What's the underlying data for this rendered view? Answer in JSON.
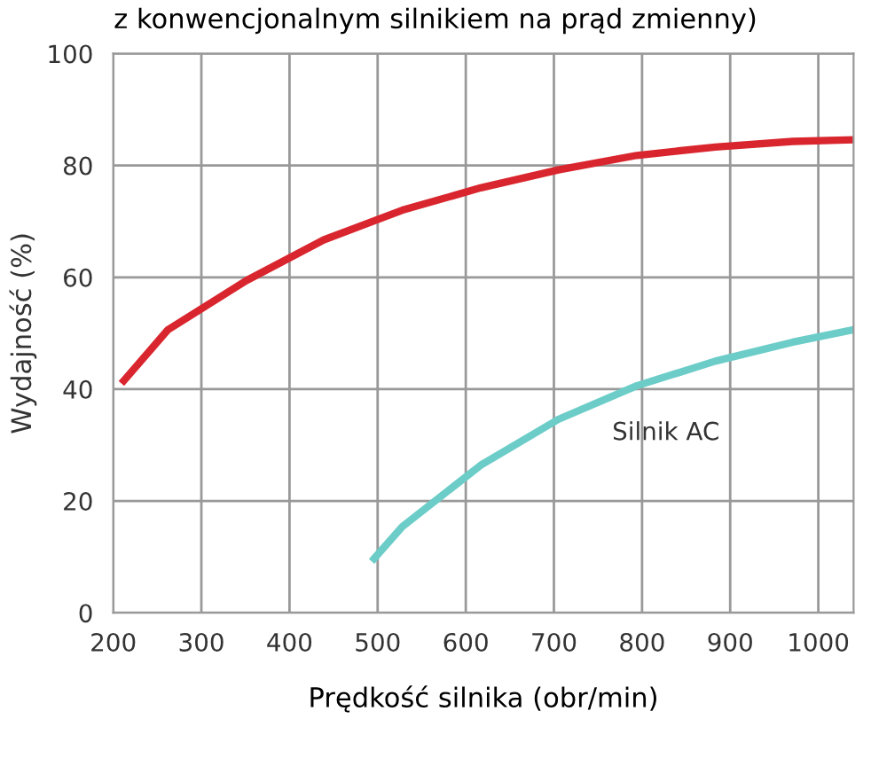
{
  "chart_data": {
    "type": "line",
    "title": "z konwencjonalnym silnikiem na prąd zmienny)",
    "xlabel": "Prędkość silnika (obr/min)",
    "ylabel": "Wydajność (%)",
    "series": [
      {
        "color": "#d9262e",
        "x": [
          212,
          262,
          351,
          439,
          528,
          617,
          705,
          794,
          883,
          971,
          1039
        ],
        "values": [
          41.5,
          50.6,
          59.4,
          66.7,
          72,
          76,
          79.2,
          81.8,
          83.3,
          84.3,
          84.6
        ]
      },
      {
        "name": "Silnik AC",
        "color": "#6ccdc8",
        "x": [
          496,
          528,
          617,
          705,
          794,
          883,
          971,
          1039
        ],
        "values": [
          9.7,
          15.4,
          26.4,
          34.6,
          40.6,
          45,
          48.4,
          50.6
        ]
      }
    ],
    "xlim": [
      200,
      1040
    ],
    "xticks": [
      200,
      300,
      400,
      500,
      600,
      700,
      800,
      900,
      1000
    ],
    "ylim": [
      0,
      100
    ],
    "yticks": [
      0,
      20,
      40,
      60,
      80,
      100
    ],
    "grid": true,
    "marker": "none",
    "line_style": "solid"
  }
}
